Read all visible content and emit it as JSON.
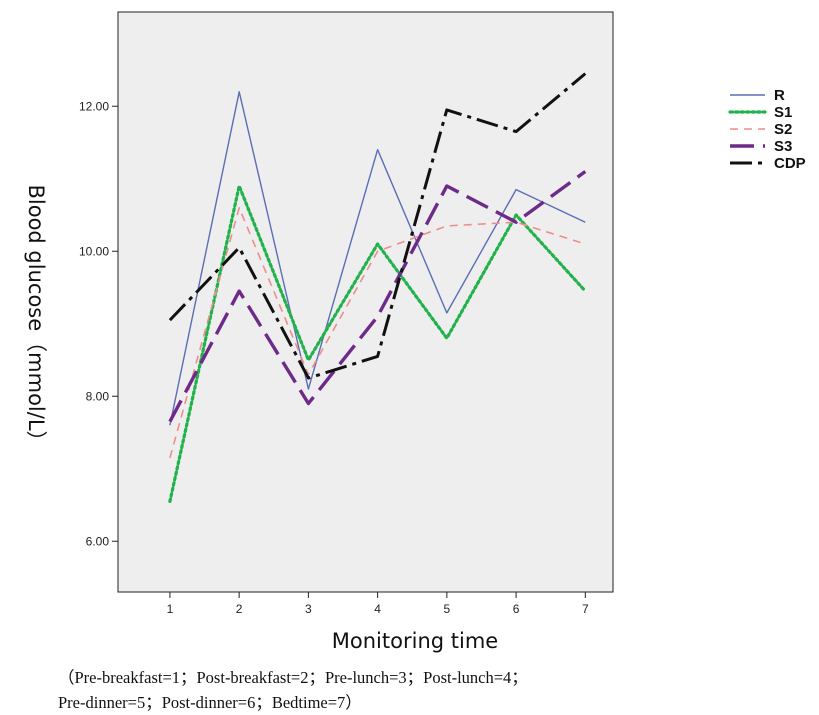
{
  "chart_data": {
    "type": "line",
    "ylabel": "Blood glucose（mmol/L）",
    "xlabel": "Monitoring time",
    "x": [
      1,
      2,
      3,
      4,
      5,
      6,
      7
    ],
    "x_tick_labels": [
      "1",
      "2",
      "3",
      "4",
      "5",
      "6",
      "7"
    ],
    "y_ticks": [
      6.0,
      8.0,
      10.0,
      12.0
    ],
    "y_tick_labels": [
      "6.00",
      "8.00",
      "10.00",
      "12.00"
    ],
    "xlim": [
      0.25,
      7.4
    ],
    "ylim": [
      5.3,
      13.3
    ],
    "grid": false,
    "legend_position": "right",
    "series": [
      {
        "name": "R",
        "color": "#5b6eb5",
        "dash": "solid",
        "values": [
          7.6,
          12.2,
          8.1,
          11.4,
          9.15,
          10.85,
          10.4
        ]
      },
      {
        "name": "S1",
        "color": "#22b24c",
        "dash": "dotted",
        "values": [
          6.55,
          10.9,
          8.5,
          10.1,
          8.8,
          10.5,
          9.45
        ]
      },
      {
        "name": "S2",
        "color": "#f08c8c",
        "dash": "dashed",
        "values": [
          7.15,
          10.6,
          8.3,
          10.0,
          10.35,
          10.4,
          10.1
        ]
      },
      {
        "name": "S3",
        "color": "#6e2a8a",
        "dash": "longdash",
        "values": [
          7.65,
          9.45,
          7.9,
          9.1,
          10.9,
          10.4,
          11.1
        ]
      },
      {
        "name": "CDP",
        "color": "#111111",
        "dash": "dashdot",
        "values": [
          9.05,
          10.05,
          8.25,
          8.55,
          11.95,
          11.65,
          12.45
        ]
      }
    ]
  },
  "footnote": {
    "line1": "（Pre-breakfast=1；Post-breakfast=2；Pre-lunch=3；Post-lunch=4；",
    "line2": "Pre-dinner=5；Post-dinner=6；Bedtime=7）"
  }
}
